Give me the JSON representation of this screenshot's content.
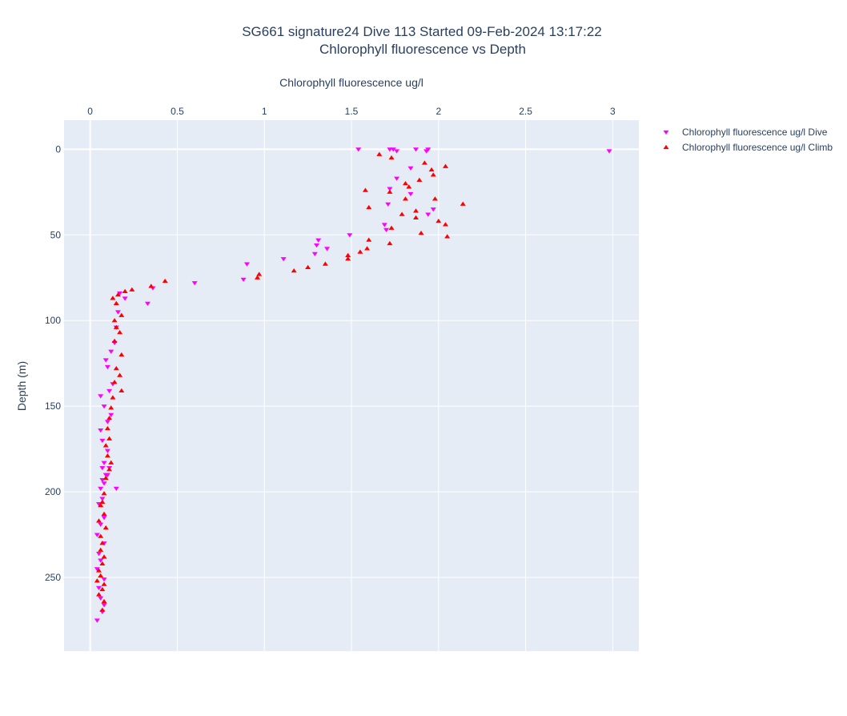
{
  "chart_data": {
    "type": "scatter",
    "title": "SG661 signature24 Dive 113 Started 09-Feb-2024 13:17:22",
    "subtitle": "Chlorophyll fluorescence vs Depth",
    "xlabel": "Chlorophyll fluorescence ug/l",
    "ylabel": "Depth (m)",
    "xlim": [
      -0.15,
      3.15
    ],
    "ylim": [
      293,
      -17
    ],
    "x_axis_position": "top",
    "y_axis_reversed": true,
    "grid": true,
    "legend_position": "top-right",
    "x_ticks": [
      0,
      0.5,
      1,
      1.5,
      2,
      2.5,
      3
    ],
    "x_tick_labels": [
      "0",
      "0.5",
      "1",
      "1.5",
      "2",
      "2.5",
      "3"
    ],
    "y_ticks": [
      0,
      50,
      100,
      150,
      200,
      250
    ],
    "y_tick_labels": [
      "0",
      "50",
      "100",
      "150",
      "200",
      "250"
    ],
    "colors": {
      "dive": "#ff00ff",
      "climb": "#ff0000",
      "plot_bg": "#e5ecf6",
      "grid": "#ffffff",
      "text": "#2a3f5f"
    },
    "series": [
      {
        "name": "Chlorophyll fluorescence ug/l Dive",
        "marker": "triangle-down",
        "color": "#ff00ff",
        "x": [
          1.54,
          1.72,
          1.74,
          1.76,
          1.87,
          1.93,
          1.94,
          2.98,
          1.84,
          1.76,
          1.72,
          1.84,
          1.71,
          1.97,
          1.94,
          1.69,
          1.7,
          1.49,
          1.31,
          1.3,
          1.36,
          1.29,
          1.11,
          0.9,
          0.88,
          0.6,
          0.36,
          0.17,
          0.2,
          0.33,
          0.16,
          0.15,
          0.14,
          0.12,
          0.09,
          0.1,
          0.13,
          0.06,
          0.11,
          0.08,
          0.12,
          0.1,
          0.06,
          0.07,
          0.1,
          0.08,
          0.07,
          0.09,
          0.07,
          0.08,
          0.1,
          0.11,
          0.06,
          0.07,
          0.05,
          0.15,
          0.08,
          0.06,
          0.04,
          0.08,
          0.05,
          0.06,
          0.04,
          0.08,
          0.05,
          0.06,
          0.08,
          0.07,
          0.04
        ],
        "y": [
          0,
          0,
          0,
          1,
          0,
          1,
          0,
          1,
          11,
          17,
          23,
          26,
          32,
          35,
          38,
          44,
          47,
          50,
          53,
          56,
          58,
          61,
          64,
          67,
          76,
          78,
          81,
          84,
          87,
          90,
          95,
          104,
          113,
          118,
          123,
          127,
          137,
          144,
          141,
          150,
          155,
          159,
          164,
          170,
          176,
          183,
          186,
          190,
          193,
          195,
          190,
          186,
          198,
          204,
          207,
          198,
          215,
          219,
          225,
          230,
          236,
          240,
          245,
          251,
          256,
          262,
          266,
          270,
          275
        ]
      },
      {
        "name": "Chlorophyll fluorescence ug/l Climb",
        "marker": "triangle-up",
        "color": "#ff0000",
        "x": [
          1.66,
          1.73,
          1.92,
          2.04,
          1.96,
          1.97,
          1.89,
          1.81,
          1.83,
          1.58,
          1.72,
          1.81,
          1.98,
          2.14,
          1.6,
          1.87,
          1.79,
          1.87,
          2.0,
          2.04,
          1.73,
          1.9,
          2.05,
          1.6,
          1.72,
          1.59,
          1.55,
          1.48,
          1.48,
          1.35,
          1.25,
          1.17,
          0.97,
          0.96,
          0.43,
          0.35,
          0.24,
          0.2,
          0.16,
          0.13,
          0.15,
          0.18,
          0.14,
          0.15,
          0.17,
          0.14,
          0.18,
          0.15,
          0.17,
          0.14,
          0.18,
          0.13,
          0.12,
          0.11,
          0.1,
          0.11,
          0.09,
          0.1,
          0.12,
          0.11,
          0.09,
          0.08,
          0.07,
          0.06,
          0.08,
          0.05,
          0.09,
          0.06,
          0.07,
          0.06,
          0.08,
          0.07,
          0.05,
          0.06,
          0.04,
          0.08,
          0.07,
          0.05,
          0.08,
          0.07
        ],
        "y": [
          3,
          5,
          8,
          10,
          12,
          15,
          18,
          20,
          22,
          24,
          25,
          29,
          29,
          32,
          34,
          36,
          38,
          40,
          42,
          44,
          46,
          49,
          51,
          53,
          55,
          58,
          60,
          62,
          64,
          67,
          69,
          71,
          73,
          75,
          77,
          80,
          82,
          83,
          85,
          87,
          90,
          97,
          100,
          104,
          107,
          112,
          120,
          128,
          132,
          136,
          141,
          145,
          151,
          157,
          163,
          169,
          173,
          179,
          183,
          187,
          192,
          201,
          206,
          208,
          213,
          217,
          221,
          226,
          230,
          234,
          238,
          242,
          246,
          249,
          252,
          254,
          257,
          260,
          264,
          269
        ]
      }
    ]
  }
}
